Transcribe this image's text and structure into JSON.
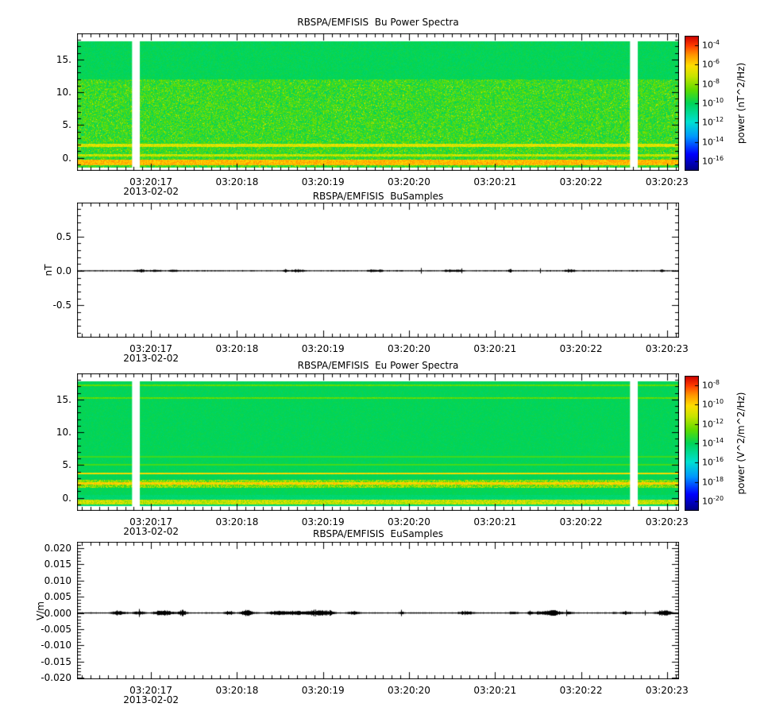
{
  "figure": {
    "background": "#ffffff",
    "text_color": "#000000",
    "x_axis": {
      "date_label": "2013-02-02",
      "range_seconds": [
        16.14,
        23.14
      ],
      "tick_seconds": [
        17,
        18,
        19,
        20,
        21,
        22,
        23
      ],
      "tick_labels": [
        "03:20:17",
        "03:20:18",
        "03:20:19",
        "03:20:20",
        "03:20:21",
        "03:20:22",
        "03:20:23"
      ],
      "minor_step_seconds": 0.1
    },
    "data_gap_seconds": [
      [
        16.78,
        16.87
      ],
      [
        22.57,
        22.66
      ]
    ],
    "colormap_stops": [
      "#000082",
      "#0000ff",
      "#0096ff",
      "#00e1d2",
      "#00d458",
      "#60dc00",
      "#c8e400",
      "#ffde00",
      "#ff9600",
      "#ff3c00",
      "#cd0000"
    ]
  },
  "chart_data": [
    {
      "type": "heatmap",
      "title": "RBSPA/EMFISIS  Bu Power Spectra",
      "y_range": [
        -2,
        19
      ],
      "y_ticks": [
        {
          "value": 15,
          "label": "15."
        },
        {
          "value": 10,
          "label": "10."
        },
        {
          "value": 5,
          "label": "5."
        },
        {
          "value": 0,
          "label": "0."
        }
      ],
      "y_minor_step": 1,
      "y_major_step": 5,
      "data_freq_range": [
        -1.5,
        17.8
      ],
      "spectrum": {
        "smooth_green_band_freq": [
          12,
          17.8
        ],
        "broadband_noise_freq": [
          -1.5,
          12
        ],
        "narrowband_lines_freq": [
          1.9,
          0.35
        ],
        "intense_line_freq": -0.7
      },
      "colorbar": {
        "label": "power (nT^2/Hz)",
        "tick_exponents": [
          -4,
          -6,
          -8,
          -10,
          -12,
          -14,
          -16
        ]
      }
    },
    {
      "type": "line",
      "title": "RBSPA/EMFISIS  BuSamples",
      "ylabel": "nT",
      "y_range": [
        -0.97,
        0.99
      ],
      "y_ticks": [
        {
          "value": 0.5,
          "label": "0.5"
        },
        {
          "value": 0.0,
          "label": "0.0"
        },
        {
          "value": -0.5,
          "label": "-0.5"
        }
      ],
      "y_minor_step": 0.1,
      "y_major_step": 0.5,
      "series": {
        "name": "Bu",
        "color": "#000000",
        "baseline": 0.0,
        "typical_amplitude": 0.01,
        "description": "waveform noise centered on 0 nT for the whole interval"
      }
    },
    {
      "type": "heatmap",
      "title": "RBSPA/EMFISIS  Eu Power Spectra",
      "y_range": [
        -2,
        19
      ],
      "y_ticks": [
        {
          "value": 15,
          "label": "15."
        },
        {
          "value": 10,
          "label": "10."
        },
        {
          "value": 5,
          "label": "5."
        },
        {
          "value": 0,
          "label": "0."
        }
      ],
      "y_minor_step": 1,
      "y_major_step": 5,
      "data_freq_range": [
        -1.3,
        17.8
      ],
      "spectrum": {
        "uniform_green_background": true,
        "narrowband_lines_freq": [
          3.7,
          2.2,
          5.0,
          6.3,
          15.2
        ],
        "intense_band_freq": [
          1.6,
          2.7
        ]
      },
      "colorbar": {
        "label": "power (V^2/m^2/Hz)",
        "tick_exponents": [
          -8,
          -10,
          -12,
          -14,
          -16,
          -18,
          -20
        ]
      }
    },
    {
      "type": "line",
      "title": "RBSPA/EMFISIS  EuSamples",
      "ylabel": "V/m",
      "y_range": [
        -0.0205,
        0.022
      ],
      "y_ticks": [
        {
          "value": 0.02,
          "label": "0.020"
        },
        {
          "value": 0.015,
          "label": "0.015"
        },
        {
          "value": 0.01,
          "label": "0.010"
        },
        {
          "value": 0.005,
          "label": "0.005"
        },
        {
          "value": 0.0,
          "label": "0.000"
        },
        {
          "value": -0.005,
          "label": "-0.005"
        },
        {
          "value": -0.01,
          "label": "-0.010"
        },
        {
          "value": -0.015,
          "label": "-0.015"
        },
        {
          "value": -0.02,
          "label": "-0.020"
        }
      ],
      "y_minor_step": 0.001,
      "y_major_step": 0.005,
      "series": {
        "name": "Eu",
        "color": "#000000",
        "baseline": 0.0,
        "typical_amplitude": 0.0005,
        "description": "waveform noise centered on 0 V/m with intermittent bursts"
      }
    }
  ]
}
